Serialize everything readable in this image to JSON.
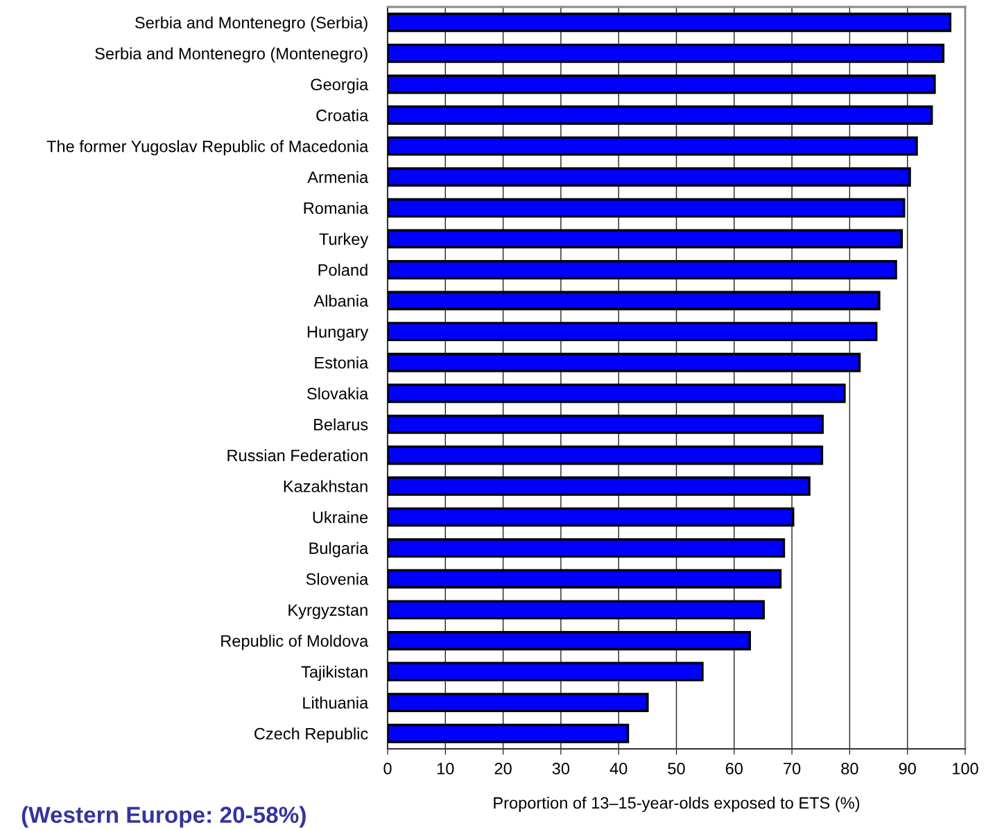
{
  "chart_data": {
    "type": "bar",
    "orientation": "horizontal",
    "categories": [
      "Serbia and Montenegro (Serbia)",
      "Serbia and Montenegro (Montenegro)",
      "Georgia",
      "Croatia",
      "The former Yugoslav Republic of Macedonia",
      "Armenia",
      "Romania",
      "Turkey",
      "Poland",
      "Albania",
      "Hungary",
      "Estonia",
      "Slovakia",
      "Belarus",
      "Russian Federation",
      "Kazakhstan",
      "Ukraine",
      "Bulgaria",
      "Slovenia",
      "Kyrgyzstan",
      "Republic of Moldova",
      "Tajikistan",
      "Lithuania",
      "Czech Republic"
    ],
    "values": [
      97.4,
      96.2,
      94.7,
      94.2,
      91.6,
      90.4,
      89.4,
      89.0,
      88.0,
      85.1,
      84.6,
      81.7,
      79.1,
      75.3,
      75.2,
      73.0,
      70.2,
      68.6,
      68.0,
      65.1,
      62.7,
      54.5,
      45.0,
      41.6
    ],
    "color": "#0000ff",
    "xlabel": "Proportion of 13–15-year-olds exposed to ETS (%)",
    "xlim": [
      0,
      100
    ],
    "xticks": [
      0,
      10,
      20,
      30,
      40,
      50,
      60,
      70,
      80,
      90,
      100
    ],
    "grid": "x",
    "annotations": [
      "(Western Europe: 20-58%)"
    ]
  }
}
